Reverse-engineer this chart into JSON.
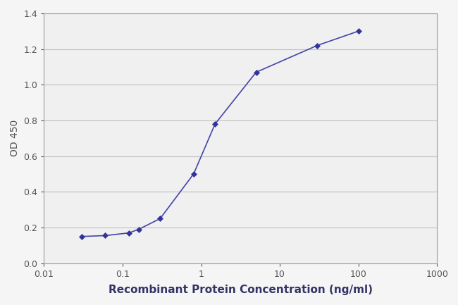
{
  "x": [
    0.03,
    0.06,
    0.12,
    0.16,
    0.3,
    0.8,
    1.5,
    5,
    30,
    100
  ],
  "y": [
    0.15,
    0.155,
    0.17,
    0.19,
    0.25,
    0.5,
    0.78,
    1.07,
    1.22,
    1.3
  ],
  "line_color": "#4444aa",
  "marker_color": "#333399",
  "marker": "D",
  "marker_size": 4,
  "line_width": 1.2,
  "xlabel": "Recombinant Protein Concentration (ng/ml)",
  "ylabel": "OD 450",
  "xlim": [
    0.01,
    1000
  ],
  "ylim": [
    0.0,
    1.4
  ],
  "yticks": [
    0.0,
    0.2,
    0.4,
    0.6,
    0.8,
    1.0,
    1.2,
    1.4
  ],
  "xticks": [
    0.01,
    0.1,
    1,
    10,
    100,
    1000
  ],
  "xtick_labels": [
    "0.01",
    "0.1",
    "1",
    "10",
    "100",
    "1000"
  ],
  "figure_bg_color": "#f5f5f5",
  "plot_bg_color": "#f0f0f0",
  "grid_color": "#c0c0c0",
  "xlabel_fontsize": 11,
  "ylabel_fontsize": 10,
  "tick_fontsize": 9,
  "xlabel_fontweight": "bold",
  "ylabel_fontweight": "normal",
  "text_color": "#555555",
  "xlabel_color": "#333366"
}
